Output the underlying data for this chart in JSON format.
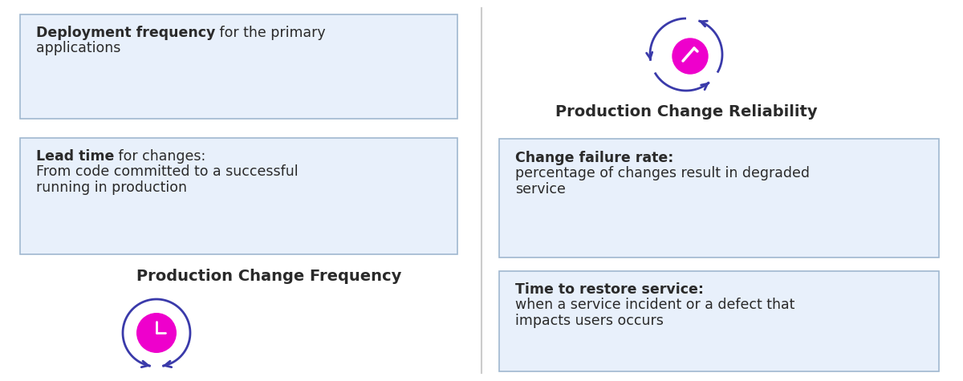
{
  "bg_color": "#ffffff",
  "divider_color": "#cccccc",
  "box_bg_color": "#e8f0fb",
  "box_border_color": "#a0b8d0",
  "text_dark": "#2a2a2a",
  "accent_color": "#3a3aaa",
  "magenta_color": "#ee00cc",
  "left_title": "Production Change Frequency",
  "right_title": "Production Change Reliability",
  "box1_bold": "Deployment frequency",
  "box1_normal": " for the primary\napplications",
  "box2_bold": "Lead time",
  "box2_normal": " for changes:\nFrom code committed to a successful\nrunning in production",
  "box3_bold": "Change failure rate:",
  "box3_normal": "\npercentage of changes result in degraded\nservice",
  "box4_bold": "Time to restore service:",
  "box4_normal": "\nwhen a service incident or a defect that\nimpacts users occurs"
}
